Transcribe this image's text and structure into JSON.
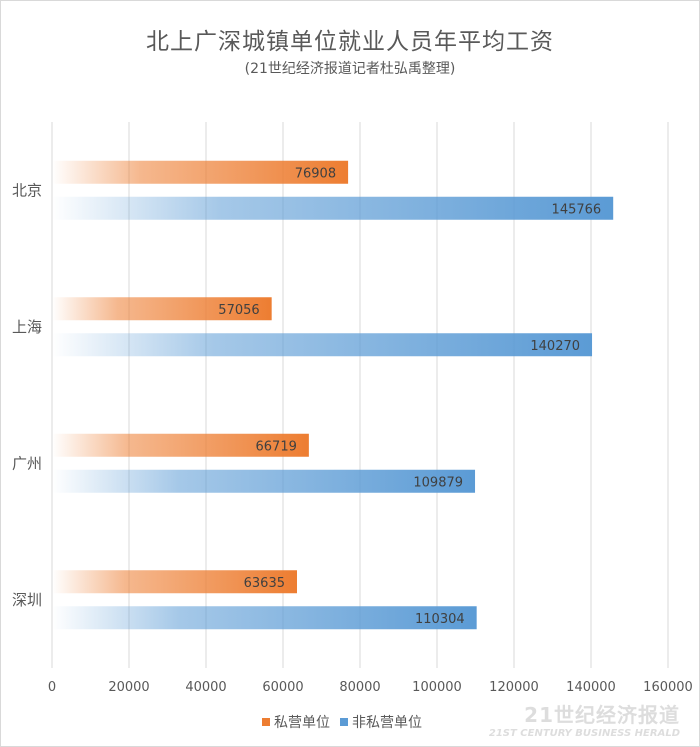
{
  "chart_data": {
    "type": "bar",
    "orientation": "horizontal",
    "title": "北上广深城镇单位就业人员年平均工资",
    "subtitle": "(21世纪经济报道记者杜弘禹整理)",
    "categories": [
      "北京",
      "上海",
      "广州",
      "深圳"
    ],
    "series": [
      {
        "name": "私营单位",
        "color": "#ed7d31",
        "values": [
          76908,
          57056,
          66719,
          63635
        ]
      },
      {
        "name": "非私营单位",
        "color": "#5b9bd5",
        "values": [
          145766,
          140270,
          109879,
          110304
        ]
      }
    ],
    "xlim": [
      0,
      160000
    ],
    "xticks": [
      0,
      20000,
      40000,
      60000,
      80000,
      100000,
      120000,
      140000,
      160000
    ],
    "grid": true,
    "legend": "bottom",
    "data_labels": true
  },
  "watermark": {
    "cn": "21世纪经济报道",
    "en": "21ST CENTURY BUSINESS HERALD"
  }
}
